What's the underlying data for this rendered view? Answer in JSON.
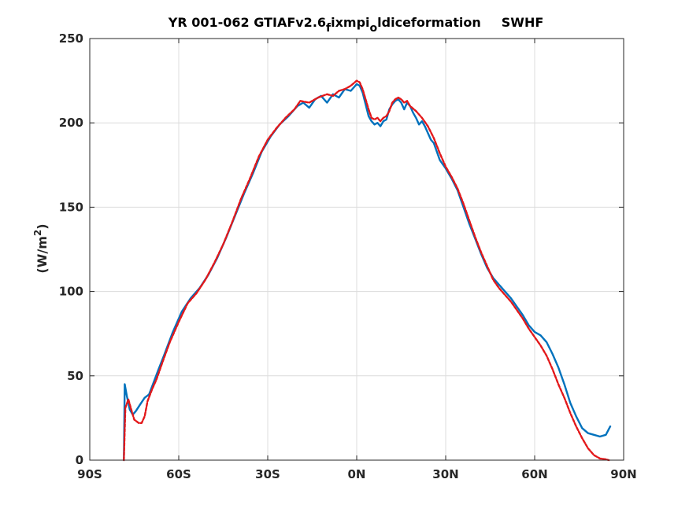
{
  "chart_data": {
    "type": "line",
    "title": {
      "main": "YR 001-062 GTIAFv2.6",
      "sub1": "f",
      "mid": "ixmpi",
      "sub2": "o",
      "tail": "ldiceformation",
      "field": "SWHF"
    },
    "ylabel": {
      "prefix": "(W/m",
      "sup": "2",
      "suffix": ")"
    },
    "xlabel": "",
    "xlim": [
      -90,
      90
    ],
    "ylim": [
      0,
      250
    ],
    "grid": true,
    "x_ticks": [
      {
        "value": -90,
        "label": "90S"
      },
      {
        "value": -60,
        "label": "60S"
      },
      {
        "value": -30,
        "label": "30S"
      },
      {
        "value": 0,
        "label": "0N"
      },
      {
        "value": 30,
        "label": "30N"
      },
      {
        "value": 60,
        "label": "60N"
      },
      {
        "value": 90,
        "label": "90N"
      }
    ],
    "y_ticks": [
      {
        "value": 0,
        "label": "0"
      },
      {
        "value": 50,
        "label": "50"
      },
      {
        "value": 100,
        "label": "100"
      },
      {
        "value": 150,
        "label": "150"
      },
      {
        "value": 200,
        "label": "200"
      },
      {
        "value": 250,
        "label": "250"
      }
    ],
    "series": [
      {
        "color": "#0072BD",
        "style": "solid",
        "points": [
          [
            -78.5,
            0
          ],
          [
            -78.2,
            45
          ],
          [
            -77.5,
            38
          ],
          [
            -76.5,
            30
          ],
          [
            -75.5,
            27
          ],
          [
            -74.5,
            29
          ],
          [
            -73,
            33
          ],
          [
            -71.5,
            37
          ],
          [
            -70,
            39
          ],
          [
            -68.5,
            46
          ],
          [
            -67,
            53
          ],
          [
            -65,
            62
          ],
          [
            -62,
            76
          ],
          [
            -59,
            88
          ],
          [
            -56,
            96
          ],
          [
            -53,
            102
          ],
          [
            -50,
            110
          ],
          [
            -47,
            120
          ],
          [
            -44,
            132
          ],
          [
            -41,
            145
          ],
          [
            -38,
            158
          ],
          [
            -35,
            170
          ],
          [
            -32,
            183
          ],
          [
            -29,
            192
          ],
          [
            -26,
            199
          ],
          [
            -23,
            204
          ],
          [
            -20,
            210
          ],
          [
            -18,
            212
          ],
          [
            -16,
            209
          ],
          [
            -14,
            214
          ],
          [
            -12,
            216
          ],
          [
            -10,
            212
          ],
          [
            -8,
            217
          ],
          [
            -6,
            215
          ],
          [
            -4,
            220
          ],
          [
            -2,
            219
          ],
          [
            0,
            223
          ],
          [
            1,
            222
          ],
          [
            2,
            218
          ],
          [
            3,
            211
          ],
          [
            4,
            204
          ],
          [
            5,
            201
          ],
          [
            6,
            199
          ],
          [
            7,
            200
          ],
          [
            8,
            198
          ],
          [
            9,
            201
          ],
          [
            10,
            202
          ],
          [
            11,
            208
          ],
          [
            12,
            211
          ],
          [
            13,
            213
          ],
          [
            14,
            214
          ],
          [
            15,
            212
          ],
          [
            16,
            208
          ],
          [
            17,
            212
          ],
          [
            18,
            210
          ],
          [
            19,
            206
          ],
          [
            20,
            203
          ],
          [
            21,
            199
          ],
          [
            22,
            201
          ],
          [
            23,
            198
          ],
          [
            24,
            194
          ],
          [
            25,
            190
          ],
          [
            26,
            188
          ],
          [
            27,
            183
          ],
          [
            28,
            178
          ],
          [
            30,
            173
          ],
          [
            32,
            167
          ],
          [
            34,
            160
          ],
          [
            36,
            150
          ],
          [
            38,
            140
          ],
          [
            40,
            131
          ],
          [
            42,
            122
          ],
          [
            44,
            114
          ],
          [
            46,
            108
          ],
          [
            48,
            104
          ],
          [
            50,
            100
          ],
          [
            52,
            96
          ],
          [
            54,
            91
          ],
          [
            56,
            86
          ],
          [
            58,
            80
          ],
          [
            60,
            76
          ],
          [
            62,
            74
          ],
          [
            64,
            70
          ],
          [
            66,
            63
          ],
          [
            68,
            55
          ],
          [
            70,
            45
          ],
          [
            72,
            34
          ],
          [
            74,
            26
          ],
          [
            76,
            19
          ],
          [
            78,
            16
          ],
          [
            80,
            15
          ],
          [
            82,
            14
          ],
          [
            84,
            15
          ],
          [
            85.5,
            20
          ]
        ]
      },
      {
        "color": "#E3181A",
        "style": "dashed",
        "points": [
          [
            -78.5,
            0
          ],
          [
            -78,
            31
          ],
          [
            -77,
            36
          ],
          [
            -76,
            30
          ],
          [
            -75,
            24
          ],
          [
            -73.5,
            22
          ],
          [
            -72.5,
            22
          ],
          [
            -71.5,
            26
          ],
          [
            -70.5,
            35
          ],
          [
            -69,
            42
          ],
          [
            -67.5,
            48
          ],
          [
            -65.5,
            58
          ],
          [
            -63,
            70
          ],
          [
            -60,
            82
          ],
          [
            -57,
            93
          ],
          [
            -54,
            99
          ],
          [
            -51,
            107
          ],
          [
            -48,
            117
          ],
          [
            -45,
            128
          ],
          [
            -42,
            141
          ],
          [
            -39,
            155
          ],
          [
            -36,
            167
          ],
          [
            -33,
            180
          ],
          [
            -30,
            190
          ],
          [
            -27,
            197
          ],
          [
            -24,
            203
          ],
          [
            -21,
            208
          ],
          [
            -19,
            213
          ],
          [
            -16,
            212
          ],
          [
            -13,
            215
          ],
          [
            -10,
            217
          ],
          [
            -8,
            216
          ],
          [
            -6,
            219
          ],
          [
            -4,
            220
          ],
          [
            -2,
            222
          ],
          [
            0,
            225
          ],
          [
            1,
            224
          ],
          [
            2,
            220
          ],
          [
            3,
            214
          ],
          [
            4,
            208
          ],
          [
            5,
            203
          ],
          [
            6,
            202
          ],
          [
            7,
            203
          ],
          [
            8,
            201
          ],
          [
            9,
            203
          ],
          [
            10,
            204
          ],
          [
            11,
            207
          ],
          [
            12,
            212
          ],
          [
            13,
            214
          ],
          [
            14,
            215
          ],
          [
            15,
            214
          ],
          [
            16,
            212
          ],
          [
            17,
            213
          ],
          [
            18,
            210
          ],
          [
            20,
            207
          ],
          [
            22,
            203
          ],
          [
            24,
            198
          ],
          [
            26,
            191
          ],
          [
            28,
            182
          ],
          [
            30,
            174
          ],
          [
            32,
            168
          ],
          [
            34,
            161
          ],
          [
            36,
            152
          ],
          [
            38,
            142
          ],
          [
            40,
            132
          ],
          [
            42,
            123
          ],
          [
            44,
            115
          ],
          [
            46,
            107
          ],
          [
            48,
            102
          ],
          [
            50,
            98
          ],
          [
            52,
            94
          ],
          [
            54,
            89
          ],
          [
            56,
            84
          ],
          [
            58,
            78
          ],
          [
            60,
            73
          ],
          [
            62,
            68
          ],
          [
            64,
            62
          ],
          [
            66,
            54
          ],
          [
            68,
            45
          ],
          [
            70,
            37
          ],
          [
            72,
            28
          ],
          [
            74,
            20
          ],
          [
            76,
            13
          ],
          [
            78,
            7
          ],
          [
            80,
            3
          ],
          [
            82,
            1
          ],
          [
            84,
            0.5
          ],
          [
            85,
            0
          ]
        ]
      }
    ]
  }
}
